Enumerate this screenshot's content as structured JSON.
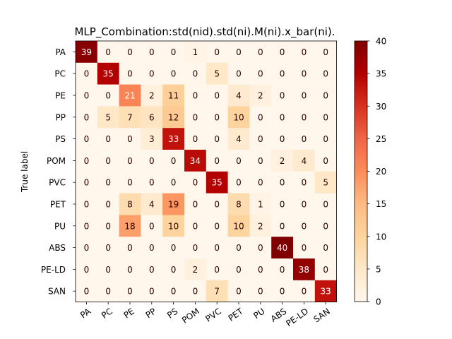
{
  "chart_data": {
    "type": "heatmap",
    "title": "MLP_Combination:std(nid).std(ni).M(ni).x_bar(ni).",
    "xlabel": "",
    "ylabel": "True label",
    "x_categories": [
      "PA",
      "PC",
      "PE",
      "PP",
      "PS",
      "POM",
      "PVC",
      "PET",
      "PU",
      "ABS",
      "PE-LD",
      "SAN"
    ],
    "y_categories": [
      "PA",
      "PC",
      "PE",
      "PP",
      "PS",
      "POM",
      "PVC",
      "PET",
      "PU",
      "ABS",
      "PE-LD",
      "SAN"
    ],
    "matrix": [
      [
        39,
        0,
        0,
        0,
        0,
        1,
        0,
        0,
        0,
        0,
        0,
        0
      ],
      [
        0,
        35,
        0,
        0,
        0,
        0,
        5,
        0,
        0,
        0,
        0,
        0
      ],
      [
        0,
        0,
        21,
        2,
        11,
        0,
        0,
        4,
        2,
        0,
        0,
        0
      ],
      [
        0,
        5,
        7,
        6,
        12,
        0,
        0,
        10,
        0,
        0,
        0,
        0
      ],
      [
        0,
        0,
        0,
        3,
        33,
        0,
        0,
        4,
        0,
        0,
        0,
        0
      ],
      [
        0,
        0,
        0,
        0,
        0,
        34,
        0,
        0,
        0,
        2,
        4,
        0
      ],
      [
        0,
        0,
        0,
        0,
        0,
        0,
        35,
        0,
        0,
        0,
        0,
        5
      ],
      [
        0,
        0,
        8,
        4,
        19,
        0,
        0,
        8,
        1,
        0,
        0,
        0
      ],
      [
        0,
        0,
        18,
        0,
        10,
        0,
        0,
        10,
        2,
        0,
        0,
        0
      ],
      [
        0,
        0,
        0,
        0,
        0,
        0,
        0,
        0,
        0,
        40,
        0,
        0
      ],
      [
        0,
        0,
        0,
        0,
        0,
        2,
        0,
        0,
        0,
        0,
        38,
        0
      ],
      [
        0,
        0,
        0,
        0,
        0,
        0,
        7,
        0,
        0,
        0,
        0,
        33
      ]
    ],
    "colormap": "OrRd",
    "vmin": 0,
    "vmax": 40,
    "colorbar_ticks": [
      0,
      5,
      10,
      15,
      20,
      25,
      30,
      35,
      40
    ],
    "x_tick_rotation_deg": 35,
    "grid": false
  }
}
